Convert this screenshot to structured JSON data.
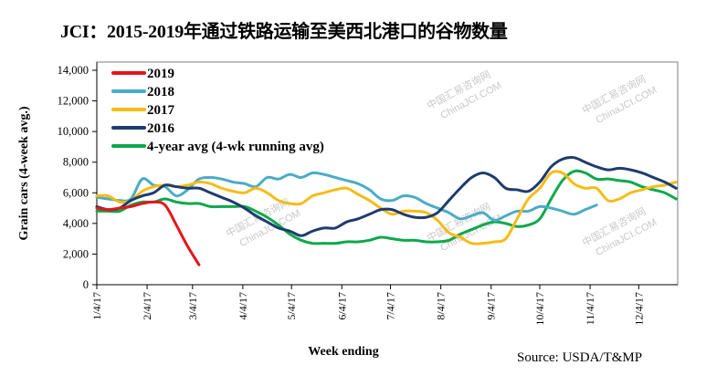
{
  "title": "JCI：2015-2019年通过铁路运输至美西北港口的谷物数量",
  "source": "Source: USDA/T&MP",
  "watermark": [
    "中国汇易咨询网",
    "ChinaJCI.COM"
  ],
  "chart_data": {
    "type": "line",
    "title": "JCI：2015-2019年通过铁路运输至美西北港口的谷物数量",
    "xlabel": "Week ending",
    "ylabel": "Grain cars (4-week avg.)",
    "ylim": [
      0,
      14000
    ],
    "yticks": [
      0,
      2000,
      4000,
      6000,
      8000,
      10000,
      12000,
      14000
    ],
    "ytick_labels": [
      "0",
      "2,000",
      "4,000",
      "6,000",
      "8,000",
      "10,000",
      "12,000",
      "14,000"
    ],
    "xtick_labels": [
      "1/4/17",
      "2/4/17",
      "3/4/17",
      "4/4/17",
      "5/4/17",
      "6/4/17",
      "7/4/17",
      "8/4/17",
      "9/4/17",
      "10/4/17",
      "11/4/17",
      "12/4/17"
    ],
    "xtick_days": [
      0,
      31,
      59,
      90,
      120,
      151,
      181,
      212,
      243,
      273,
      304,
      334
    ],
    "x_range_days": [
      0,
      358
    ],
    "x_step_days": 7,
    "grid": false,
    "legend_position": "top-left",
    "series": [
      {
        "name": "2019",
        "color": "#e8141b",
        "values": [
          5000,
          4900,
          5000,
          5100,
          5300,
          5400,
          5200,
          3900,
          2500,
          1300
        ]
      },
      {
        "name": "2018",
        "color": "#4bacc6",
        "values": [
          5700,
          5600,
          5500,
          5600,
          6900,
          6500,
          6400,
          5800,
          6200,
          6900,
          7000,
          6900,
          6700,
          6600,
          6400,
          7000,
          6900,
          7200,
          7000,
          7300,
          7200,
          7000,
          6800,
          6600,
          6200,
          5600,
          5500,
          5800,
          5700,
          5300,
          5000,
          4700,
          4300,
          4500,
          4700,
          4200,
          4500,
          4800,
          4800,
          5100,
          5000,
          4800,
          4600,
          4900,
          5200
        ]
      },
      {
        "name": "2017",
        "color": "#f6bc16",
        "values": [
          5800,
          5800,
          5400,
          5500,
          6100,
          6400,
          6500,
          6400,
          6500,
          6700,
          6600,
          6300,
          6100,
          6000,
          6300,
          6000,
          5500,
          5300,
          5300,
          5800,
          6000,
          6200,
          6300,
          5900,
          5500,
          5000,
          4600,
          4800,
          4800,
          4700,
          4200,
          3400,
          3100,
          2700,
          2700,
          2800,
          3000,
          4300,
          5600,
          6300,
          7300,
          7300,
          6600,
          6300,
          6300,
          5500,
          5600,
          6000,
          6200,
          6400,
          6500,
          6700
        ]
      },
      {
        "name": "2016",
        "color": "#1f3c6e",
        "values": [
          5100,
          4900,
          5000,
          5500,
          5800,
          6000,
          6500,
          6400,
          6300,
          6300,
          6000,
          5700,
          5400,
          5000,
          4500,
          4100,
          3700,
          3500,
          3200,
          3500,
          3700,
          3700,
          4100,
          4300,
          4600,
          4900,
          4900,
          4600,
          4400,
          4400,
          4700,
          5500,
          6300,
          7000,
          7300,
          7000,
          6300,
          6200,
          6100,
          6700,
          7700,
          8200,
          8300,
          8000,
          7700,
          7500,
          7600,
          7500,
          7300,
          7000,
          6700,
          6300
        ]
      },
      {
        "name": "4-year avg (4-wk running avg)",
        "color": "#0ca84c",
        "values": [
          4800,
          4800,
          4800,
          5200,
          5400,
          5400,
          5600,
          5400,
          5300,
          5300,
          5100,
          5100,
          5100,
          5100,
          4800,
          4400,
          3900,
          3300,
          2900,
          2700,
          2700,
          2700,
          2800,
          2800,
          2900,
          3100,
          3000,
          2900,
          2900,
          2800,
          2800,
          2900,
          3300,
          3600,
          3900,
          4100,
          4000,
          3800,
          3900,
          4300,
          5600,
          6800,
          7400,
          7300,
          6900,
          6900,
          6800,
          6700,
          6400,
          6200,
          6000,
          5600
        ]
      }
    ]
  }
}
